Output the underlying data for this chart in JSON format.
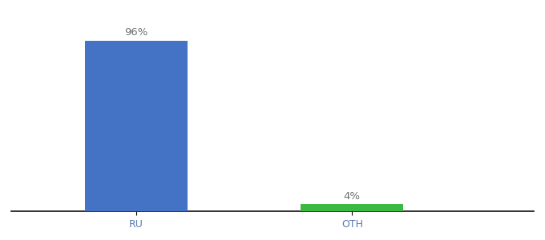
{
  "categories": [
    "RU",
    "OTH"
  ],
  "values": [
    96,
    4
  ],
  "bar_colors": [
    "#4472C4",
    "#3CB943"
  ],
  "label_texts": [
    "96%",
    "4%"
  ],
  "ylim": [
    0,
    108
  ],
  "background_color": "#ffffff",
  "bar_width": 0.18,
  "label_fontsize": 9.5,
  "tick_fontsize": 9,
  "tick_color": "#5a7ab5",
  "spine_color": "#111111",
  "x_positions": [
    0.3,
    0.68
  ]
}
